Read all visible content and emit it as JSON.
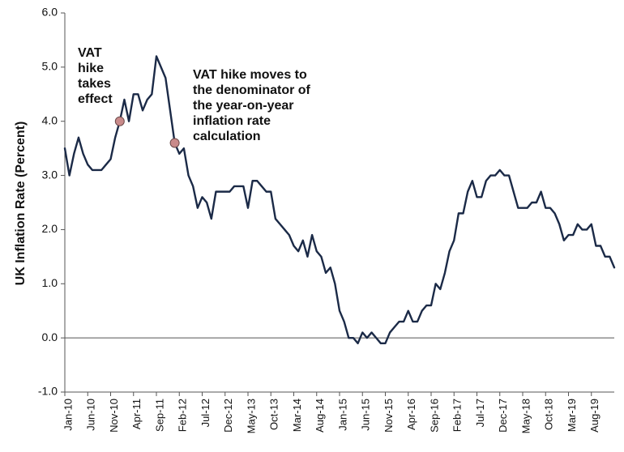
{
  "chart_data": {
    "type": "line",
    "ylabel": "UK Inflation Rate (Percent)",
    "xlabel": "",
    "ylim": [
      -1.0,
      6.0
    ],
    "yticks": [
      -1.0,
      0.0,
      1.0,
      2.0,
      3.0,
      4.0,
      5.0,
      6.0
    ],
    "ytick_labels": [
      "-1.0",
      "0.0",
      "1.0",
      "2.0",
      "3.0",
      "4.0",
      "5.0",
      "6.0"
    ],
    "xtick_labels": [
      "Jan-10",
      "Jun-10",
      "Nov-10",
      "Apr-11",
      "Sep-11",
      "Feb-12",
      "Jul-12",
      "Dec-12",
      "May-13",
      "Oct-13",
      "Mar-14",
      "Aug-14",
      "Jan-15",
      "Jun-15",
      "Nov-15",
      "Apr-16",
      "Sep-16",
      "Feb-17",
      "Jul-17",
      "Dec-17",
      "May-18",
      "Oct-18",
      "Mar-19",
      "Aug-19"
    ],
    "xtick_step_months": 5,
    "start_month": "Jan-10",
    "grid": false,
    "line_color": "#1b2a47",
    "marker_color": "#c98a8a",
    "series": [
      {
        "values": [
          3.5,
          3.0,
          3.4,
          3.7,
          3.4,
          3.2,
          3.1,
          3.1,
          3.1,
          3.2,
          3.3,
          3.7,
          4.0,
          4.4,
          4.0,
          4.5,
          4.5,
          4.2,
          4.4,
          4.5,
          5.2,
          5.0,
          4.8,
          4.2,
          3.6,
          3.4,
          3.5,
          3.0,
          2.8,
          2.4,
          2.6,
          2.5,
          2.2,
          2.7,
          2.7,
          2.7,
          2.7,
          2.8,
          2.8,
          2.8,
          2.4,
          2.9,
          2.9,
          2.8,
          2.7,
          2.7,
          2.2,
          2.1,
          2.0,
          1.9,
          1.7,
          1.6,
          1.8,
          1.5,
          1.9,
          1.6,
          1.5,
          1.2,
          1.3,
          1.0,
          0.5,
          0.3,
          0.0,
          0.0,
          -0.1,
          0.1,
          0.0,
          0.1,
          0.0,
          -0.1,
          -0.1,
          0.1,
          0.2,
          0.3,
          0.3,
          0.5,
          0.3,
          0.3,
          0.5,
          0.6,
          0.6,
          1.0,
          0.9,
          1.2,
          1.6,
          1.8,
          2.3,
          2.3,
          2.7,
          2.9,
          2.6,
          2.6,
          2.9,
          3.0,
          3.0,
          3.1,
          3.0,
          3.0,
          2.7,
          2.4,
          2.4,
          2.4,
          2.5,
          2.5,
          2.7,
          2.4,
          2.4,
          2.3,
          2.1,
          1.8,
          1.9,
          1.9,
          2.1,
          2.0,
          2.0,
          2.1,
          1.7,
          1.7,
          1.5,
          1.5,
          1.3
        ]
      }
    ],
    "annotations": [
      {
        "month_index": 12,
        "value": 4.0,
        "lines": [
          "VAT",
          "hike",
          "takes",
          "effect"
        ]
      },
      {
        "month_index": 24,
        "value": 3.6,
        "lines": [
          "VAT hike moves to",
          "the denominator of",
          "the year-on-year",
          "inflation rate",
          "calculation"
        ]
      }
    ]
  }
}
